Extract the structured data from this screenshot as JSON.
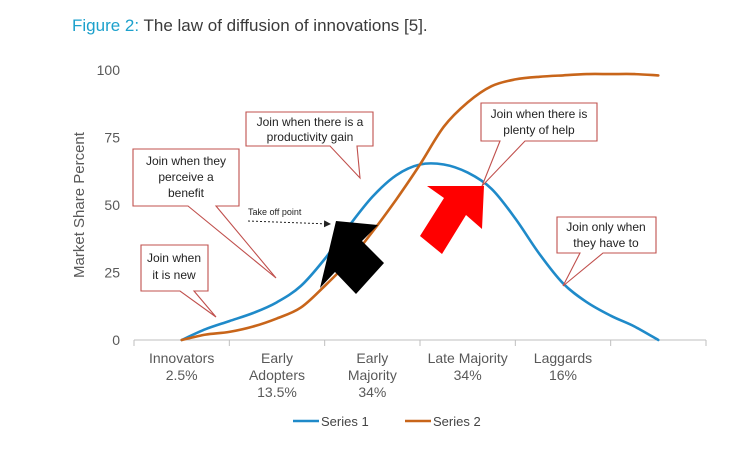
{
  "figure": {
    "title_prefix": "Figure 2:",
    "title_text": "The law of diffusion of innovations [5]."
  },
  "chart_data": {
    "type": "line",
    "title": "Figure 2: The law of diffusion of innovations [5].",
    "ylabel": "Market Share Percent",
    "xlabel": "",
    "ylim": [
      0,
      100
    ],
    "yticks": [
      "0",
      "25",
      "50",
      "75",
      "100"
    ],
    "grid": false,
    "legend_placement": "bottom",
    "categories": [
      {
        "lines": [
          "Innovators",
          "2.5%"
        ]
      },
      {
        "lines": [
          "Early",
          "Adopters",
          "13.5%"
        ]
      },
      {
        "lines": [
          "Early",
          "Majority",
          "34%"
        ]
      },
      {
        "lines": [
          "Late Majority",
          "34%"
        ]
      },
      {
        "lines": [
          "Laggards",
          "16%"
        ]
      }
    ],
    "x": [
      0,
      0.25,
      0.5,
      0.75,
      1.0,
      1.25,
      1.5,
      1.75,
      2.0,
      2.25,
      2.5,
      2.75,
      3.0,
      3.25,
      3.5,
      3.75,
      4.0,
      4.25,
      4.5,
      4.75,
      5.0,
      5.25,
      5.5
    ],
    "series": [
      {
        "name": "Series 1",
        "color": "#1f8ac9",
        "values": [
          0,
          4,
          7,
          10,
          14,
          20,
          30,
          42,
          53,
          61,
          65,
          65,
          62,
          56,
          45,
          32,
          21,
          14,
          9,
          5,
          0,
          null,
          null
        ]
      },
      {
        "name": "Series 2",
        "color": "#c8651a",
        "values": [
          0,
          2,
          3,
          5,
          8,
          12,
          20,
          29,
          40,
          52,
          65,
          79,
          88,
          94,
          96.5,
          97.5,
          98,
          98.5,
          98.5,
          98.5,
          98,
          null,
          null
        ]
      }
    ],
    "annotations": [
      {
        "id": "new",
        "lines": [
          "Join when",
          "it is new"
        ]
      },
      {
        "id": "benefit",
        "lines": [
          "Join when they",
          "perceive a",
          "benefit"
        ]
      },
      {
        "id": "productivity",
        "lines": [
          "Join when there is a",
          "productivity gain"
        ]
      },
      {
        "id": "help",
        "lines": [
          "Join when there is",
          "plenty of help"
        ]
      },
      {
        "id": "have",
        "lines": [
          "Join only when",
          "they have to"
        ]
      },
      {
        "id": "takeoff",
        "text": "Take off point"
      }
    ]
  }
}
